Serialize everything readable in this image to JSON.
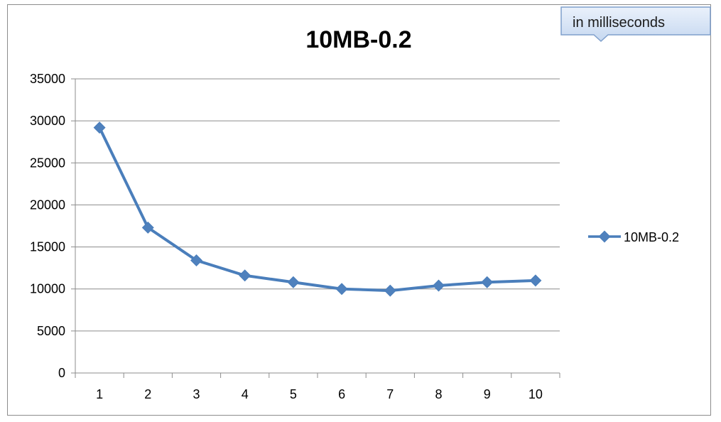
{
  "chart_data": {
    "type": "line",
    "title": "10MB-0.2",
    "xlabel": "",
    "ylabel": "",
    "categories": [
      "1",
      "2",
      "3",
      "4",
      "5",
      "6",
      "7",
      "8",
      "9",
      "10"
    ],
    "series": [
      {
        "name": "10MB-0.2",
        "values": [
          29200,
          17300,
          13400,
          11600,
          10800,
          10000,
          9800,
          10400,
          10800,
          11000
        ]
      }
    ],
    "ylim": [
      0,
      35000
    ],
    "yticks": [
      0,
      5000,
      10000,
      15000,
      20000,
      25000,
      30000,
      35000
    ],
    "grid": "horizontal",
    "legend": "right",
    "callout": "in milliseconds",
    "colors": {
      "series": "#4a7ebb",
      "series_marker": "#4f81bd",
      "grid": "#8c8c8c",
      "callout_fill_top": "#eaf1fb",
      "callout_fill_bottom": "#c6d8f0",
      "callout_border": "#7f9fcc"
    }
  }
}
